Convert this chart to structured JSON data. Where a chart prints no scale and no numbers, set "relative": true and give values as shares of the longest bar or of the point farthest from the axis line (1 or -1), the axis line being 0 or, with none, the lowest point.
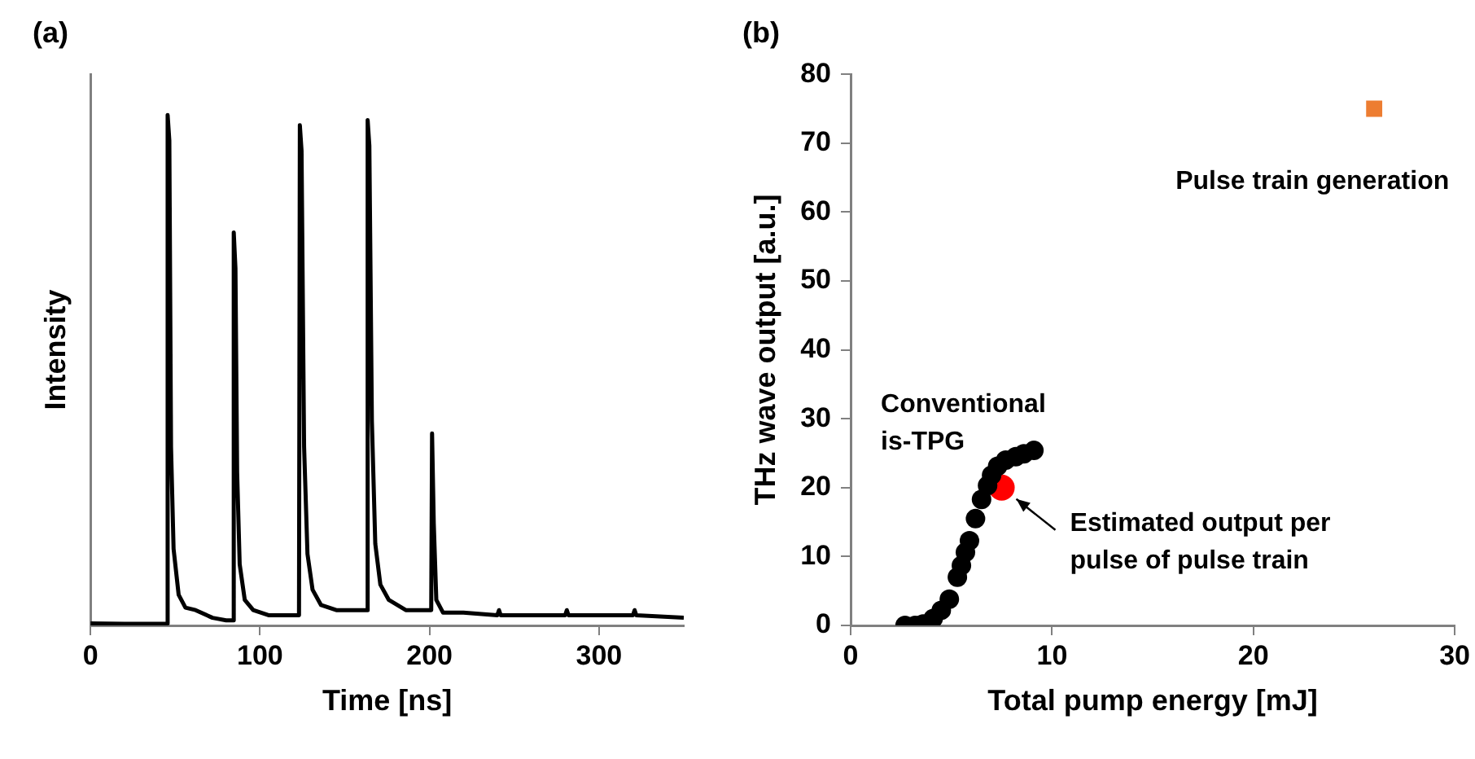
{
  "chart_data": [
    {
      "type": "line",
      "title": "(a)",
      "xlabel": "Time [ns]",
      "ylabel": "Intensity",
      "relative": true,
      "xlim": [
        0,
        350
      ],
      "xticks": [
        0,
        100,
        200,
        300
      ],
      "grid": false,
      "legend": false,
      "marker": "none",
      "series": [
        {
          "color": "#000000",
          "x": [
            0,
            20,
            44,
            45,
            45.5,
            46.5,
            47.5,
            49,
            52,
            56,
            62,
            72,
            80,
            84,
            84.5,
            85.5,
            86.5,
            88,
            91,
            96,
            105,
            115,
            123,
            123.5,
            124.5,
            126,
            128,
            131,
            136,
            145,
            155,
            163,
            163.5,
            164.5,
            166,
            168,
            171,
            176,
            186,
            195,
            201,
            201.5,
            202.5,
            204,
            208,
            220,
            240,
            241,
            242,
            280,
            281,
            282,
            320,
            321,
            322,
            350
          ],
          "values": [
            0.004,
            0.003,
            0.003,
            0.004,
            1.0,
            0.95,
            0.35,
            0.15,
            0.06,
            0.035,
            0.03,
            0.015,
            0.01,
            0.01,
            0.77,
            0.7,
            0.3,
            0.12,
            0.05,
            0.03,
            0.02,
            0.02,
            0.02,
            0.98,
            0.93,
            0.35,
            0.14,
            0.07,
            0.04,
            0.03,
            0.03,
            0.03,
            0.99,
            0.94,
            0.4,
            0.16,
            0.08,
            0.05,
            0.03,
            0.03,
            0.03,
            0.376,
            0.2,
            0.05,
            0.025,
            0.025,
            0.02,
            0.03,
            0.02,
            0.02,
            0.03,
            0.02,
            0.02,
            0.03,
            0.02,
            0.015
          ]
        }
      ]
    },
    {
      "type": "scatter",
      "title": "(b)",
      "xlabel": "Total pump energy [mJ]",
      "ylabel": "THz wave output [a.u.]",
      "xlim": [
        0,
        30
      ],
      "xticks": [
        0,
        10,
        20,
        30
      ],
      "ylim": [
        0,
        80
      ],
      "yticks": [
        0,
        10,
        20,
        30,
        40,
        50,
        60,
        70,
        80
      ],
      "grid": false,
      "legend": false,
      "annotations": [
        {
          "text": "Pulse train generation",
          "x": 26,
          "y": 75
        },
        "Conventional is-TPG",
        {
          "text": "Estimated output per pulse of pulse train",
          "x": 7.5,
          "y": 20
        }
      ],
      "series": [
        {
          "color": "#000000",
          "marker": "circle",
          "x": [
            2.7,
            3.2,
            3.6,
            4.1,
            4.5,
            4.9,
            5.3,
            5.5,
            5.7,
            5.9,
            6.2,
            6.5,
            6.8,
            7.0,
            7.3,
            7.7,
            8.2,
            8.6,
            9.1
          ],
          "values": [
            0,
            0,
            0.2,
            1,
            2.2,
            3.8,
            7,
            8.7,
            10.6,
            12.3,
            15.5,
            18.3,
            20.3,
            21.8,
            23.1,
            24,
            24.5,
            24.9,
            25.4
          ]
        },
        {
          "color": "#ff0000",
          "marker": "circle",
          "x": [
            7.5
          ],
          "values": [
            20
          ]
        },
        {
          "color": "#ed7d31",
          "marker": "square",
          "x": [
            26
          ],
          "values": [
            75
          ]
        }
      ]
    }
  ]
}
